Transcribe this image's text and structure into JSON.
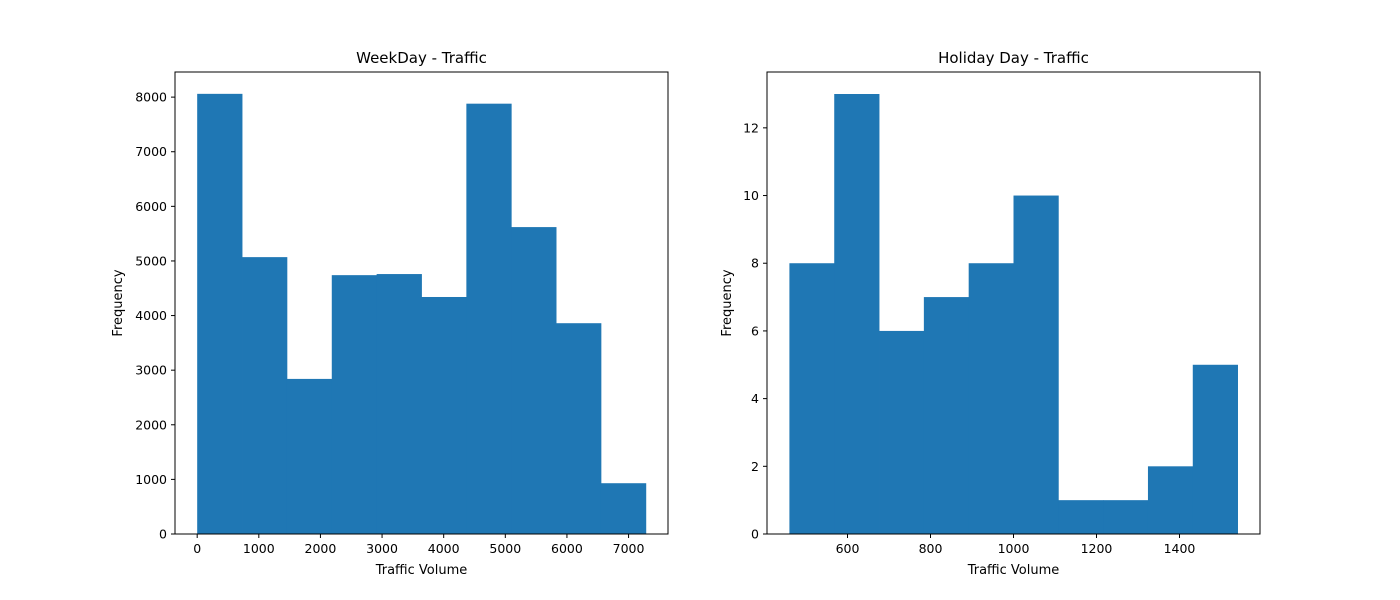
{
  "chart_data": [
    {
      "type": "bar",
      "title": "WeekDay - Traffic",
      "xlabel": "Traffic Volume",
      "ylabel": "Frequency",
      "color": "#1f77b4",
      "grid": false,
      "xlim": [
        -360,
        7640
      ],
      "ylim": [
        0,
        8460
      ],
      "bin_edges": [
        0,
        728,
        1456,
        2184,
        2912,
        3640,
        4368,
        5096,
        5824,
        6552,
        7280
      ],
      "values": [
        8060,
        5070,
        2840,
        4740,
        4760,
        4340,
        7880,
        5620,
        3860,
        930
      ],
      "xticks": [
        0,
        1000,
        2000,
        3000,
        4000,
        5000,
        6000,
        7000
      ],
      "yticks": [
        0,
        1000,
        2000,
        3000,
        4000,
        5000,
        6000,
        7000,
        8000
      ]
    },
    {
      "type": "bar",
      "title": "Holiday Day - Traffic",
      "xlabel": "Traffic Volume",
      "ylabel": "Frequency",
      "color": "#1f77b4",
      "grid": false,
      "xlim": [
        406,
        1594
      ],
      "ylim": [
        0,
        13.65
      ],
      "bin_edges": [
        460,
        568,
        676,
        784,
        892,
        1000,
        1108,
        1216,
        1324,
        1432,
        1540
      ],
      "values": [
        8,
        13,
        6,
        7,
        8,
        10,
        1,
        1,
        2,
        5
      ],
      "xticks": [
        600,
        800,
        1000,
        1200,
        1400
      ],
      "yticks": [
        0,
        2,
        4,
        6,
        8,
        10,
        12
      ]
    }
  ]
}
